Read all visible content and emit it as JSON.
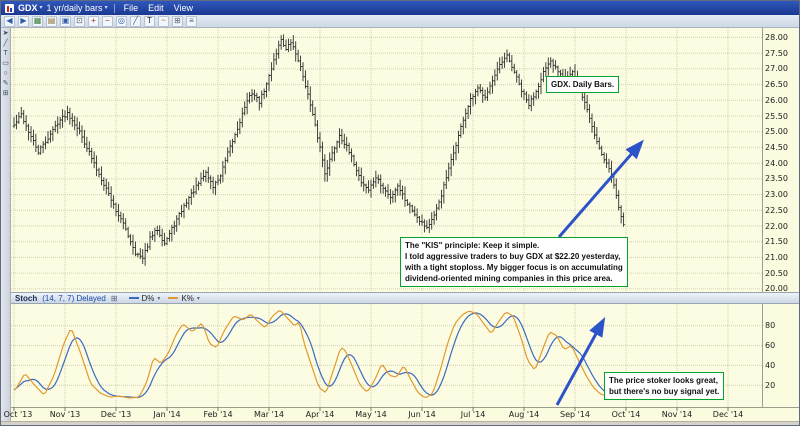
{
  "window": {
    "symbol": "GDX",
    "timeframe": "1 yr/daily bars",
    "menus": [
      "File",
      "Edit",
      "View"
    ]
  },
  "ui": {
    "caret_icon": "▾",
    "expand_icon": "⊞"
  },
  "toolbar": {
    "icons": [
      {
        "name": "nav-back-icon",
        "glyph": "◀",
        "color": "#2e5aa8"
      },
      {
        "name": "nav-forward-icon",
        "glyph": "▶",
        "color": "#2e5aa8"
      },
      {
        "name": "new-chart-icon",
        "glyph": "▦",
        "color": "#3a7a3a"
      },
      {
        "name": "open-layout-icon",
        "glyph": "▤",
        "color": "#8a6a2a"
      },
      {
        "name": "save-layout-icon",
        "glyph": "▣",
        "color": "#2e5aa8"
      },
      {
        "name": "print-icon",
        "glyph": "⊡",
        "color": "#55606e"
      },
      {
        "name": "zoom-in-icon",
        "glyph": "+",
        "color": "#9a2e2e"
      },
      {
        "name": "zoom-out-icon",
        "glyph": "−",
        "color": "#9a2e2e"
      },
      {
        "name": "crosshair-icon",
        "glyph": "◎",
        "color": "#2e5aa8"
      },
      {
        "name": "trendline-tool-icon",
        "glyph": "╱",
        "color": "#2e5aa8"
      },
      {
        "name": "text-tool-icon",
        "glyph": "T",
        "color": "#222222"
      },
      {
        "name": "indicator-icon",
        "glyph": "~",
        "color": "#a06a20"
      },
      {
        "name": "grid-toggle-icon",
        "glyph": "⊞",
        "color": "#55606e"
      },
      {
        "name": "menu-more-icon",
        "glyph": "≡",
        "color": "#55606e"
      }
    ]
  },
  "left_toolbar": {
    "icons": [
      {
        "name": "pointer-tool-icon",
        "glyph": "➤"
      },
      {
        "name": "trendline-tool-icon",
        "glyph": "╱"
      },
      {
        "name": "text-note-tool-icon",
        "glyph": "T"
      },
      {
        "name": "box-tool-icon",
        "glyph": "▭"
      },
      {
        "name": "ellipse-tool-icon",
        "glyph": "○"
      },
      {
        "name": "draw-tool-icon",
        "glyph": "✎"
      },
      {
        "name": "grid-tool-icon",
        "glyph": "⊞"
      }
    ]
  },
  "indicator": {
    "name": "Stoch",
    "params": "(14, 7, 7) Delayed",
    "legend": [
      {
        "label": "D%",
        "color": "#3a6abf"
      },
      {
        "label": "K%",
        "color": "#e09a30"
      }
    ]
  },
  "annotations": {
    "daily_bars_label": "GDX. Daily Bars.",
    "kis_note_lines": [
      "The \"KIS\" principle:  Keep it simple.",
      "I told aggressive traders to buy GDX at $22.20 yesterday,",
      "with a tight stoploss.  My bigger focus is on accumulating",
      "dividend-oriented mining companies in this price area."
    ],
    "stoch_note_lines": [
      "The price stoker looks great,",
      "but there's no buy signal yet."
    ],
    "border_color": "#00a32e"
  },
  "arrows": {
    "color": "#2d53c8"
  },
  "chart_data": {
    "type": "ohlc-bar",
    "title": "GDX 1 yr/daily bars with Stochastic (14,7,7)",
    "bar_color": "#2e2e2e",
    "grid_color": "#cfcfb4",
    "days": 251,
    "days_per_month": 21,
    "seed": 42,
    "months": [
      "Oct '13",
      "Nov '13",
      "Dec '13",
      "Jan '14",
      "Feb '14",
      "Mar '14",
      "Apr '14",
      "May '14",
      "Jun '14",
      "Jul '14",
      "Aug '14",
      "Sep '14",
      "Oct '14",
      "Nov '14",
      "Dec '14"
    ],
    "price_axis": {
      "min": 19.9,
      "max": 28.3,
      "tick": 0.5,
      "labels": [
        "28.00",
        "27.50",
        "27.00",
        "26.50",
        "26.00",
        "25.50",
        "25.00",
        "24.50",
        "24.00",
        "23.50",
        "23.00",
        "22.50",
        "22.00",
        "21.50",
        "21.00",
        "20.50",
        "20.00"
      ]
    },
    "price_path": [
      [
        0,
        25.2
      ],
      [
        3,
        25.55
      ],
      [
        6,
        25.0
      ],
      [
        10,
        24.35
      ],
      [
        14,
        24.8
      ],
      [
        18,
        25.3
      ],
      [
        22,
        25.6
      ],
      [
        26,
        25.15
      ],
      [
        30,
        24.5
      ],
      [
        34,
        23.8
      ],
      [
        38,
        23.2
      ],
      [
        42,
        22.5
      ],
      [
        46,
        21.9
      ],
      [
        50,
        21.15
      ],
      [
        53,
        20.95
      ],
      [
        56,
        21.6
      ],
      [
        59,
        21.9
      ],
      [
        62,
        21.45
      ],
      [
        65,
        21.9
      ],
      [
        68,
        22.35
      ],
      [
        72,
        22.9
      ],
      [
        76,
        23.35
      ],
      [
        79,
        23.7
      ],
      [
        82,
        23.25
      ],
      [
        85,
        23.6
      ],
      [
        88,
        24.3
      ],
      [
        92,
        25.1
      ],
      [
        95,
        25.8
      ],
      [
        98,
        26.25
      ],
      [
        101,
        25.95
      ],
      [
        104,
        26.5
      ],
      [
        107,
        27.3
      ],
      [
        110,
        27.95
      ],
      [
        112,
        27.6
      ],
      [
        114,
        27.85
      ],
      [
        117,
        27.3
      ],
      [
        120,
        26.5
      ],
      [
        123,
        25.5
      ],
      [
        126,
        24.5
      ],
      [
        128,
        23.7
      ],
      [
        131,
        24.3
      ],
      [
        134,
        24.9
      ],
      [
        137,
        24.5
      ],
      [
        140,
        24.0
      ],
      [
        143,
        23.4
      ],
      [
        146,
        23.15
      ],
      [
        149,
        23.55
      ],
      [
        152,
        23.2
      ],
      [
        155,
        22.9
      ],
      [
        158,
        23.3
      ],
      [
        161,
        22.85
      ],
      [
        164,
        22.5
      ],
      [
        167,
        22.2
      ],
      [
        170,
        21.95
      ],
      [
        173,
        22.3
      ],
      [
        176,
        23.0
      ],
      [
        179,
        23.8
      ],
      [
        182,
        24.6
      ],
      [
        185,
        25.4
      ],
      [
        188,
        26.0
      ],
      [
        191,
        26.35
      ],
      [
        194,
        26.15
      ],
      [
        197,
        26.6
      ],
      [
        200,
        27.1
      ],
      [
        203,
        27.4
      ],
      [
        206,
        26.9
      ],
      [
        209,
        26.3
      ],
      [
        212,
        25.85
      ],
      [
        215,
        26.3
      ],
      [
        218,
        26.9
      ],
      [
        221,
        27.2
      ],
      [
        224,
        26.95
      ],
      [
        227,
        26.7
      ],
      [
        230,
        26.9
      ],
      [
        233,
        26.35
      ],
      [
        236,
        25.7
      ],
      [
        239,
        24.9
      ],
      [
        242,
        24.3
      ],
      [
        245,
        23.85
      ],
      [
        247,
        23.3
      ],
      [
        249,
        22.6
      ],
      [
        251,
        22.1
      ]
    ],
    "stoch": {
      "range": [
        0,
        100
      ],
      "grid": [
        20,
        40,
        60,
        80
      ],
      "axis_labels": [
        "80",
        "60",
        "40",
        "20"
      ],
      "k_color": "#e09a30",
      "d_color": "#3a6abf",
      "d_smooth": 7,
      "k_path": [
        [
          0,
          15
        ],
        [
          4,
          32
        ],
        [
          8,
          20
        ],
        [
          12,
          10
        ],
        [
          16,
          30
        ],
        [
          20,
          62
        ],
        [
          23,
          78
        ],
        [
          27,
          52
        ],
        [
          31,
          22
        ],
        [
          35,
          12
        ],
        [
          39,
          8
        ],
        [
          43,
          9
        ],
        [
          47,
          7
        ],
        [
          51,
          8
        ],
        [
          54,
          22
        ],
        [
          57,
          48
        ],
        [
          60,
          42
        ],
        [
          63,
          52
        ],
        [
          66,
          70
        ],
        [
          69,
          82
        ],
        [
          73,
          74
        ],
        [
          77,
          83
        ],
        [
          80,
          62
        ],
        [
          83,
          58
        ],
        [
          86,
          75
        ],
        [
          90,
          90
        ],
        [
          94,
          86
        ],
        [
          97,
          92
        ],
        [
          100,
          84
        ],
        [
          103,
          78
        ],
        [
          106,
          90
        ],
        [
          109,
          96
        ],
        [
          112,
          88
        ],
        [
          115,
          80
        ],
        [
          117,
          84
        ],
        [
          119,
          62
        ],
        [
          122,
          40
        ],
        [
          125,
          18
        ],
        [
          128,
          12
        ],
        [
          131,
          35
        ],
        [
          134,
          58
        ],
        [
          136,
          55
        ],
        [
          139,
          38
        ],
        [
          142,
          20
        ],
        [
          145,
          13
        ],
        [
          148,
          25
        ],
        [
          151,
          42
        ],
        [
          154,
          30
        ],
        [
          157,
          28
        ],
        [
          160,
          40
        ],
        [
          163,
          25
        ],
        [
          166,
          12
        ],
        [
          169,
          7
        ],
        [
          172,
          12
        ],
        [
          175,
          35
        ],
        [
          178,
          62
        ],
        [
          181,
          82
        ],
        [
          184,
          91
        ],
        [
          187,
          95
        ],
        [
          190,
          92
        ],
        [
          193,
          82
        ],
        [
          196,
          72
        ],
        [
          199,
          84
        ],
        [
          202,
          94
        ],
        [
          205,
          90
        ],
        [
          208,
          70
        ],
        [
          211,
          45
        ],
        [
          214,
          35
        ],
        [
          217,
          55
        ],
        [
          220,
          74
        ],
        [
          223,
          70
        ],
        [
          226,
          56
        ],
        [
          229,
          60
        ],
        [
          232,
          45
        ],
        [
          235,
          30
        ],
        [
          238,
          18
        ],
        [
          241,
          11
        ],
        [
          244,
          9
        ],
        [
          246,
          14
        ],
        [
          248,
          8
        ],
        [
          251,
          6
        ]
      ]
    }
  }
}
